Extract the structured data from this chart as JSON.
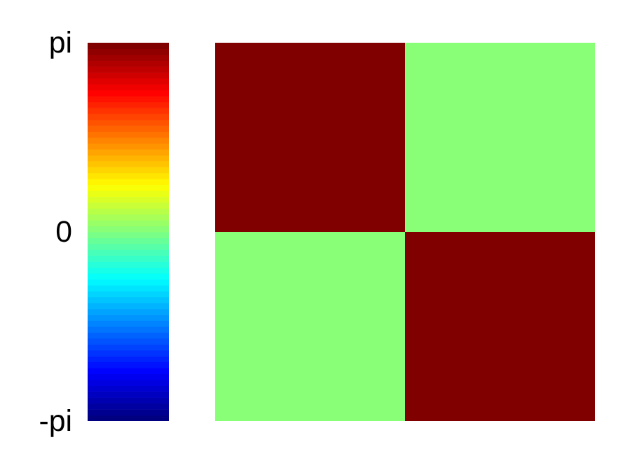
{
  "chart_data": {
    "type": "heatmap",
    "categories": [
      null,
      null
    ],
    "y_categories": [
      null,
      null
    ],
    "cells": [
      [
        3.14159,
        0
      ],
      [
        0,
        3.14159
      ]
    ],
    "clim": [
      -3.14159,
      3.14159
    ],
    "cticks": [
      {
        "value": -3.14159,
        "label": "-pi"
      },
      {
        "value": 0,
        "label": "0"
      },
      {
        "value": 3.14159,
        "label": "pi"
      }
    ]
  }
}
